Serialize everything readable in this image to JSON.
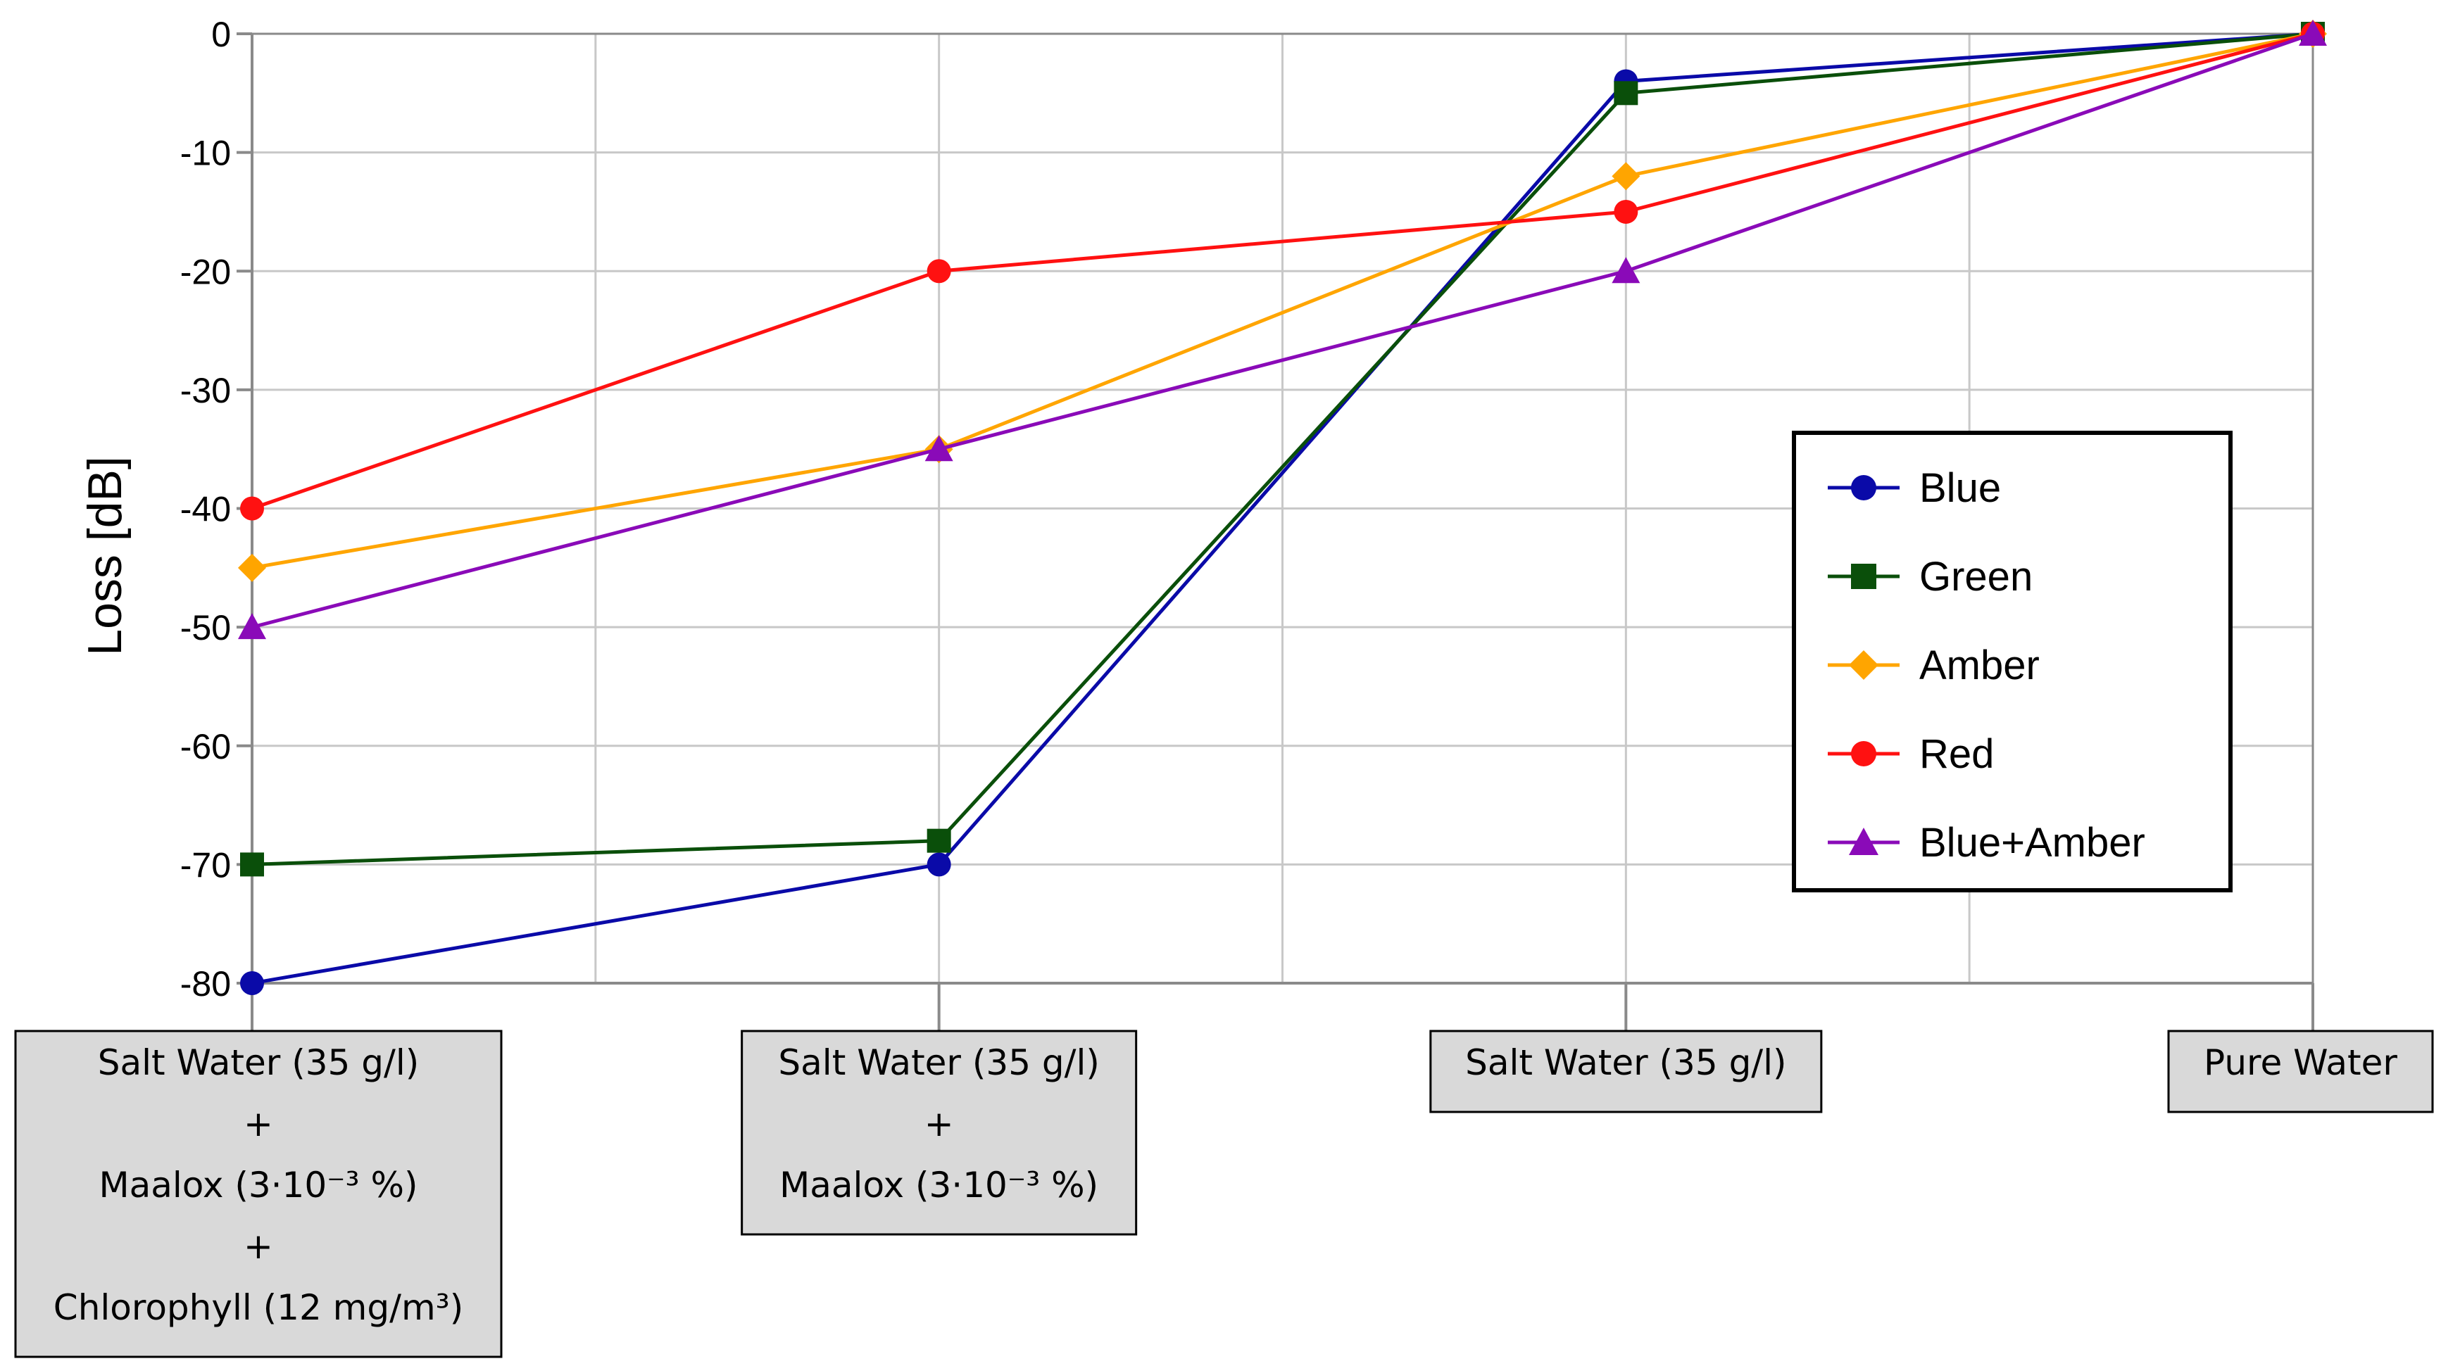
{
  "chart_data": {
    "type": "line",
    "title": "",
    "xlabel": "",
    "ylabel": "Loss [dB]",
    "ylim": [
      -80,
      0
    ],
    "yticks": [
      0,
      -10,
      -20,
      -30,
      -40,
      -50,
      -60,
      -70,
      -80
    ],
    "grid": true,
    "legend_position": "right",
    "categories": [
      {
        "lines": [
          "Salt Water (35 g/l)",
          "+",
          "Maalox (3·10⁻³ %)",
          "+",
          "Chlorophyll (12 mg/m³)"
        ]
      },
      {
        "lines": [
          "Salt Water (35 g/l)",
          "+",
          "Maalox (3·10⁻³ %)"
        ]
      },
      {
        "lines": [
          "Salt Water (35 g/l)"
        ]
      },
      {
        "lines": [
          "Pure Water"
        ]
      }
    ],
    "series": [
      {
        "name": "Blue",
        "color": "#0a0aa8",
        "marker": "circle",
        "values": [
          -80,
          -70,
          -4,
          0
        ]
      },
      {
        "name": "Green",
        "color": "#0a4f0a",
        "marker": "square",
        "values": [
          -70,
          -68,
          -5,
          0
        ]
      },
      {
        "name": "Amber",
        "color": "#ffa500",
        "marker": "diamond",
        "values": [
          -45,
          -35,
          -12,
          0
        ]
      },
      {
        "name": "Red",
        "color": "#ff1111",
        "marker": "circle",
        "values": [
          -40,
          -20,
          -15,
          0
        ]
      },
      {
        "name": "Blue+Amber",
        "color": "#8a0ab8",
        "marker": "triangle",
        "values": [
          -50,
          -35,
          -20,
          0
        ]
      }
    ]
  }
}
